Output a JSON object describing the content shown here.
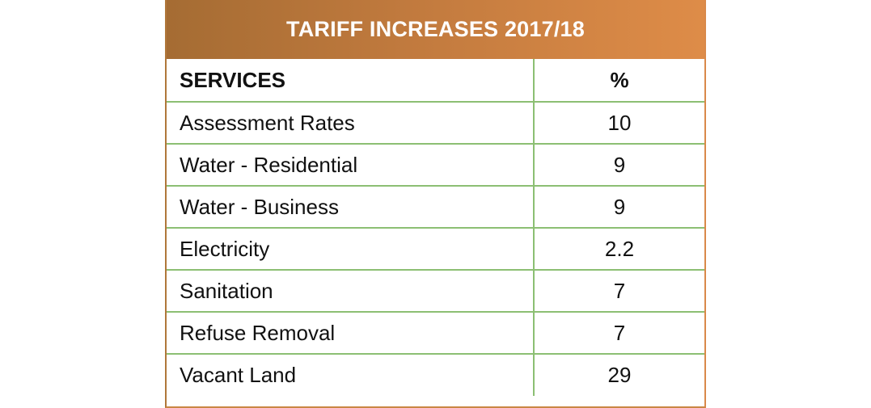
{
  "table": {
    "title": "TARIFF INCREASES 2017/18",
    "header": {
      "service": "SERVICES",
      "percent": "%"
    },
    "rows": [
      {
        "service": "Assessment Rates",
        "percent": "10"
      },
      {
        "service": "Water - Residential",
        "percent": "9"
      },
      {
        "service": "Water - Business",
        "percent": "9"
      },
      {
        "service": "Electricity",
        "percent": "2.2"
      },
      {
        "service": "Sanitation",
        "percent": "7"
      },
      {
        "service": "Refuse Removal",
        "percent": "7"
      },
      {
        "service": "Vacant Land",
        "percent": "29"
      }
    ]
  },
  "colors": {
    "title_gradient_start": "#a56c33",
    "title_gradient_end": "#de8c48",
    "grid_line": "#8cbf73",
    "title_text": "#ffffff"
  }
}
